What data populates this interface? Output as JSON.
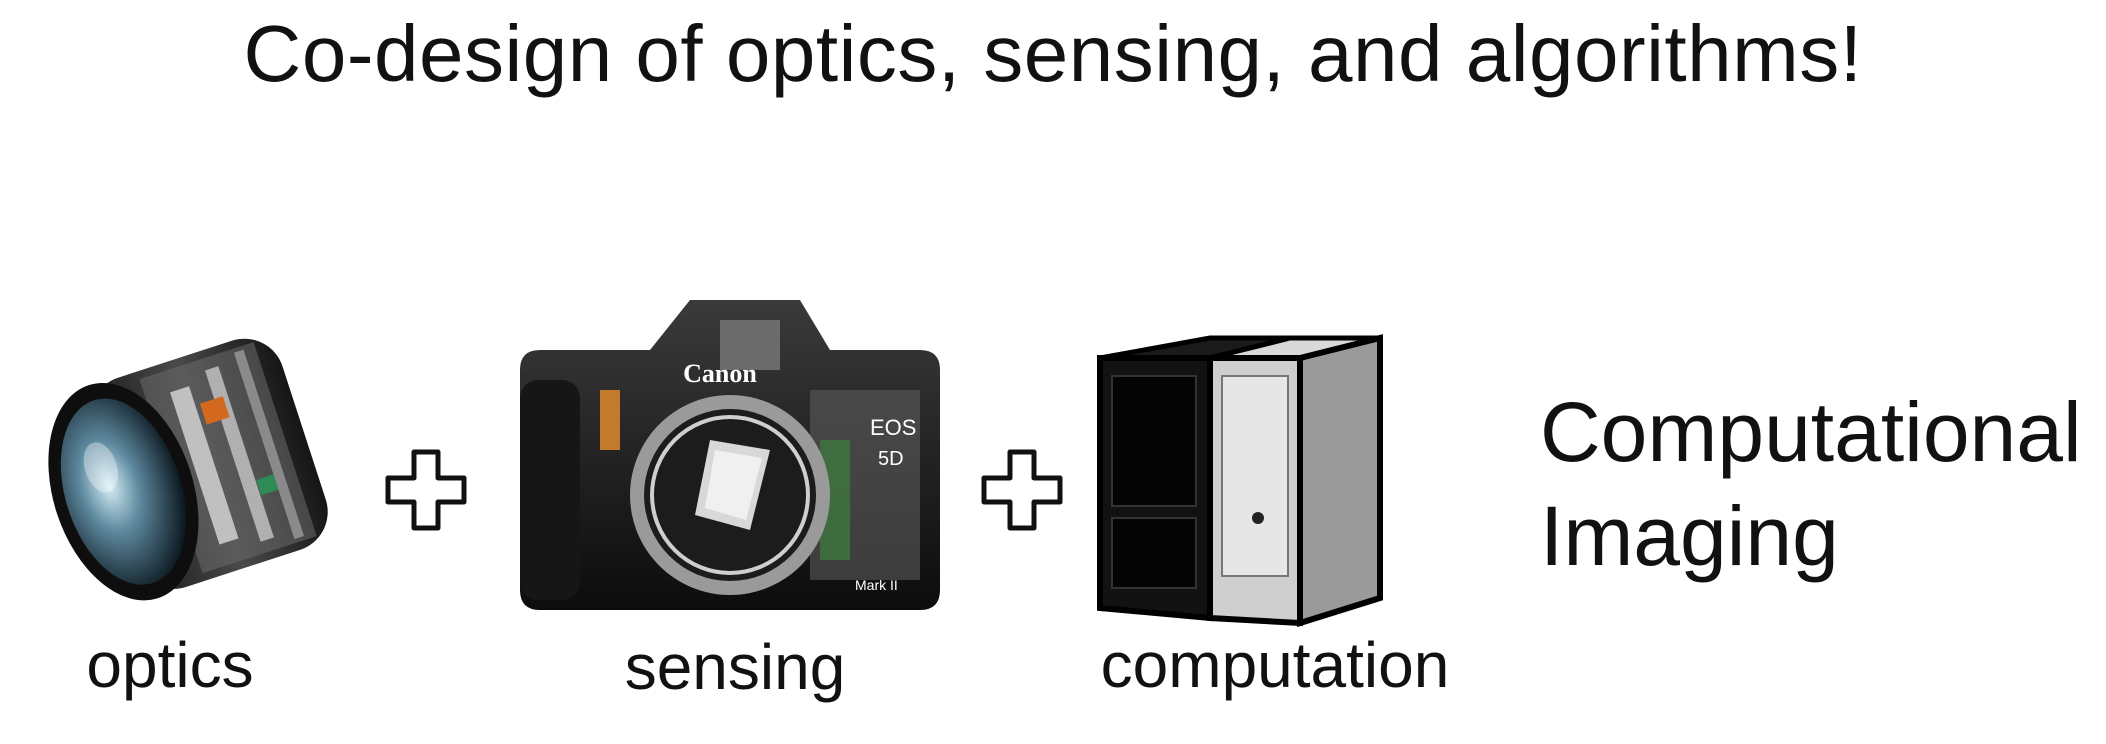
{
  "title": "Co-design of optics, sensing, and algorithms!",
  "components": {
    "optics": {
      "caption": "optics"
    },
    "sensing": {
      "caption": "sensing",
      "brand": "Canon",
      "model": "EOS",
      "model_number": "5D",
      "edition": "Mark II"
    },
    "computation": {
      "caption": "computation"
    }
  },
  "result": {
    "line1": "Computational",
    "line2": "Imaging"
  },
  "icons": [
    "lens-cutaway-icon",
    "plus-icon",
    "camera-cutaway-icon",
    "computer-tower-icon"
  ]
}
